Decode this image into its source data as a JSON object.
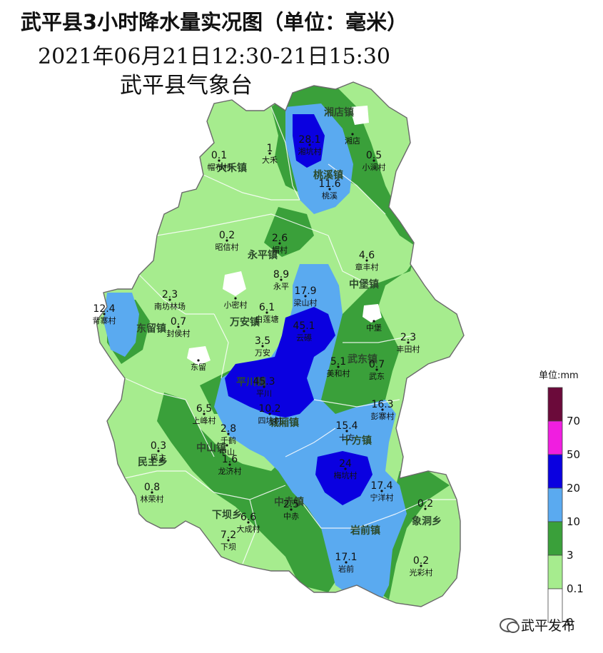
{
  "header": {
    "title": "武平县3小时降水量实况图（单位：毫米）",
    "subtitle": "2021年06月21日12:30-21日15:30",
    "issuer": "武平县气象台"
  },
  "legend": {
    "title": "单位:mm",
    "bins": [
      {
        "label": "",
        "color": "#6b0a3a"
      },
      {
        "label": "70",
        "color": "#f01ee0"
      },
      {
        "label": "50",
        "color": "#0a00e0"
      },
      {
        "label": "20",
        "color": "#5aaaf0"
      },
      {
        "label": "10",
        "color": "#3aa03a"
      },
      {
        "label": "3",
        "color": "#a6ec8e"
      },
      {
        "label": "0.1",
        "color": "#ffffff"
      }
    ],
    "bottom_label": "0"
  },
  "towns": [
    {
      "name": "湘店镇"
    },
    {
      "name": "大禾镇"
    },
    {
      "name": "桃溪镇"
    },
    {
      "name": "永平镇"
    },
    {
      "name": "中堡镇"
    },
    {
      "name": "东留镇"
    },
    {
      "name": "万安镇"
    },
    {
      "name": "平川镇"
    },
    {
      "name": "武东镇"
    },
    {
      "name": "城厢镇"
    },
    {
      "name": "十方镇"
    },
    {
      "name": "中山镇"
    },
    {
      "name": "民主乡"
    },
    {
      "name": "中赤镇"
    },
    {
      "name": "下坝乡"
    },
    {
      "name": "岩前镇"
    },
    {
      "name": "象洞乡"
    }
  ],
  "stations": [
    {
      "value": "28.1",
      "name": "湘坑村"
    },
    {
      "value": "",
      "name": "湘店"
    },
    {
      "value": "0.1",
      "name": "帽布村"
    },
    {
      "value": "1",
      "name": "大禾"
    },
    {
      "value": "0.5",
      "name": "小澜村"
    },
    {
      "value": "11.6",
      "name": "桃溪"
    },
    {
      "value": "0.2",
      "name": "昭信村"
    },
    {
      "value": "2.6",
      "name": "帽村"
    },
    {
      "value": "4.6",
      "name": "章丰村"
    },
    {
      "value": "",
      "name": "小密村"
    },
    {
      "value": "8.9",
      "name": "永平"
    },
    {
      "value": "17.9",
      "name": "梁山村"
    },
    {
      "value": "2.3",
      "name": "南坊林场"
    },
    {
      "value": "12.4",
      "name": "背寨村"
    },
    {
      "value": "0.7",
      "name": "封侯村"
    },
    {
      "value": "6.1",
      "name": "白莲塘"
    },
    {
      "value": "45.1",
      "name": "云礤"
    },
    {
      "value": "",
      "name": "中堡"
    },
    {
      "value": "2.3",
      "name": "丰田村"
    },
    {
      "value": "",
      "name": "东留"
    },
    {
      "value": "3.5",
      "name": "万安"
    },
    {
      "value": "5.1",
      "name": "美和村"
    },
    {
      "value": "0.7",
      "name": "武东"
    },
    {
      "value": "45.3",
      "name": "平川"
    },
    {
      "value": "10.2",
      "name": "四坑村"
    },
    {
      "value": "16.3",
      "name": "彭寨村"
    },
    {
      "value": "6.5",
      "name": "上峰村"
    },
    {
      "value": "2.8",
      "name": "千鹤"
    },
    {
      "value": "15.4",
      "name": "十方"
    },
    {
      "value": "0.3",
      "name": "民主"
    },
    {
      "value": "",
      "name": "中山"
    },
    {
      "value": "1.6",
      "name": "龙济村"
    },
    {
      "value": "24",
      "name": "梅坑村"
    },
    {
      "value": "0.8",
      "name": "林荣村"
    },
    {
      "value": "2.5",
      "name": "中赤"
    },
    {
      "value": "17.4",
      "name": "宁洋村"
    },
    {
      "value": "0.2",
      "name": ""
    },
    {
      "value": "6.6",
      "name": "大成村"
    },
    {
      "value": "7.2",
      "name": "下坝"
    },
    {
      "value": "17.1",
      "name": "岩前"
    },
    {
      "value": "0.2",
      "name": "光彩村"
    }
  ],
  "watermark": {
    "text": "武平发布",
    "icon": "wechat-icon"
  }
}
